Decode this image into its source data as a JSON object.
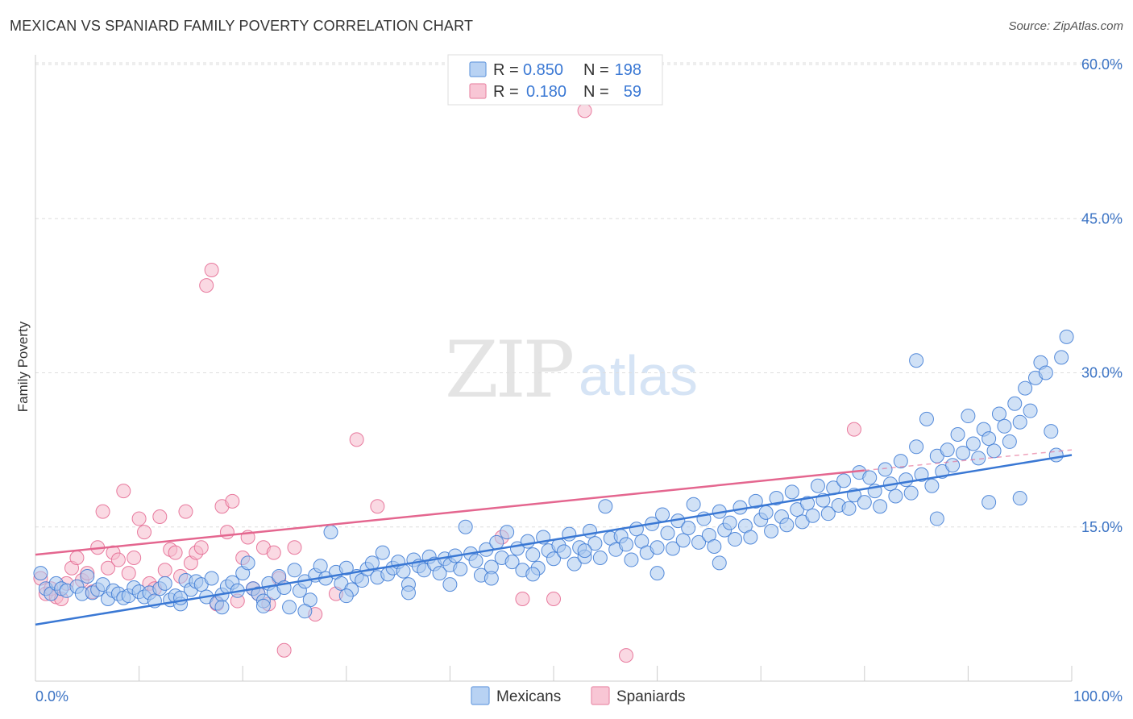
{
  "title": "MEXICAN VS SPANIARD FAMILY POVERTY CORRELATION CHART",
  "source": "Source: ZipAtlas.com",
  "colors": {
    "blue": "#3a78d4",
    "blue_fill": "#a9c8ef",
    "pink": "#e4668f",
    "pink_fill": "#f6b9cc",
    "tick": "#3b73c4"
  },
  "legend": {
    "rows": [
      {
        "r_label": "R =",
        "r_value": "0.850",
        "n_label": "N =",
        "n_value": "198"
      },
      {
        "r_label": "R =",
        "r_value": "0.180",
        "n_label": "N =",
        "n_value": "59"
      }
    ]
  },
  "bottom_legend": {
    "series1": "Mexicans",
    "series2": "Spaniards"
  },
  "watermark": {
    "zip": "ZIP",
    "atlas": "atlas"
  },
  "chart_data": {
    "type": "scatter",
    "title": "MEXICAN VS SPANIARD FAMILY POVERTY CORRELATION CHART",
    "xlabel": "",
    "ylabel": "Family Poverty",
    "xlim": [
      0,
      100
    ],
    "ylim": [
      0,
      60
    ],
    "x_tick_labels": [
      "0.0%",
      "100.0%"
    ],
    "y_ticks": [
      15,
      30,
      45,
      60
    ],
    "y_tick_labels": [
      "15.0%",
      "30.0%",
      "45.0%",
      "60.0%"
    ],
    "series": [
      {
        "name": "Mexicans",
        "R": 0.85,
        "N": 198,
        "trend": {
          "x0": 0,
          "y0": 5.5,
          "x1": 100,
          "y1": 22.0
        },
        "points": [
          [
            0.5,
            10.5
          ],
          [
            1.0,
            9.0
          ],
          [
            1.5,
            8.5
          ],
          [
            2.0,
            9.5
          ],
          [
            2.5,
            9.0
          ],
          [
            3.0,
            8.8
          ],
          [
            4.0,
            9.2
          ],
          [
            4.5,
            8.5
          ],
          [
            5.0,
            10.2
          ],
          [
            5.5,
            8.6
          ],
          [
            6.0,
            8.9
          ],
          [
            6.5,
            9.4
          ],
          [
            7.0,
            8.0
          ],
          [
            7.5,
            8.8
          ],
          [
            8.0,
            8.5
          ],
          [
            8.5,
            8.1
          ],
          [
            9.0,
            8.3
          ],
          [
            9.5,
            9.1
          ],
          [
            10.0,
            8.7
          ],
          [
            10.5,
            8.2
          ],
          [
            11.0,
            8.6
          ],
          [
            11.5,
            7.8
          ],
          [
            12.0,
            9.0
          ],
          [
            12.5,
            9.5
          ],
          [
            13.0,
            7.9
          ],
          [
            13.5,
            8.3
          ],
          [
            14.0,
            7.5
          ],
          [
            14.5,
            9.8
          ],
          [
            15.0,
            8.9
          ],
          [
            15.5,
            9.7
          ],
          [
            16.0,
            9.4
          ],
          [
            16.5,
            8.2
          ],
          [
            17.0,
            10.0
          ],
          [
            17.5,
            7.6
          ],
          [
            18.0,
            8.4
          ],
          [
            18.5,
            9.2
          ],
          [
            19.0,
            9.6
          ],
          [
            19.5,
            8.8
          ],
          [
            20.0,
            10.5
          ],
          [
            20.5,
            11.5
          ],
          [
            21.0,
            9.0
          ],
          [
            21.5,
            8.5
          ],
          [
            22.0,
            7.8
          ],
          [
            22.5,
            9.5
          ],
          [
            23.0,
            8.6
          ],
          [
            23.5,
            10.2
          ],
          [
            24.0,
            9.1
          ],
          [
            24.5,
            7.2
          ],
          [
            25.0,
            10.8
          ],
          [
            25.5,
            8.8
          ],
          [
            26.0,
            9.7
          ],
          [
            26.5,
            7.9
          ],
          [
            27.0,
            10.3
          ],
          [
            27.5,
            11.2
          ],
          [
            28.0,
            10.0
          ],
          [
            28.5,
            14.5
          ],
          [
            29.0,
            10.6
          ],
          [
            29.5,
            9.5
          ],
          [
            30.0,
            11.0
          ],
          [
            30.5,
            8.9
          ],
          [
            31.0,
            10.2
          ],
          [
            31.5,
            9.8
          ],
          [
            32.0,
            10.9
          ],
          [
            32.5,
            11.5
          ],
          [
            33.0,
            10.1
          ],
          [
            33.5,
            12.5
          ],
          [
            34.0,
            10.4
          ],
          [
            34.5,
            11.0
          ],
          [
            35.0,
            11.6
          ],
          [
            35.5,
            10.7
          ],
          [
            36.0,
            9.4
          ],
          [
            36.5,
            11.8
          ],
          [
            37.0,
            11.2
          ],
          [
            37.5,
            10.8
          ],
          [
            38.0,
            12.1
          ],
          [
            38.5,
            11.4
          ],
          [
            39.0,
            10.5
          ],
          [
            39.5,
            11.9
          ],
          [
            40.0,
            11.3
          ],
          [
            40.5,
            12.2
          ],
          [
            41.0,
            10.9
          ],
          [
            41.5,
            15.0
          ],
          [
            42.0,
            12.4
          ],
          [
            42.5,
            11.7
          ],
          [
            43.0,
            10.3
          ],
          [
            43.5,
            12.8
          ],
          [
            44.0,
            11.1
          ],
          [
            44.5,
            13.5
          ],
          [
            45.0,
            12.0
          ],
          [
            45.5,
            14.5
          ],
          [
            46.0,
            11.6
          ],
          [
            46.5,
            12.9
          ],
          [
            47.0,
            10.8
          ],
          [
            47.5,
            13.6
          ],
          [
            48.0,
            12.3
          ],
          [
            48.5,
            11.0
          ],
          [
            49.0,
            14.0
          ],
          [
            49.5,
            12.7
          ],
          [
            50.0,
            11.9
          ],
          [
            50.5,
            13.2
          ],
          [
            51.0,
            12.6
          ],
          [
            51.5,
            14.3
          ],
          [
            52.0,
            11.4
          ],
          [
            52.5,
            13.0
          ],
          [
            53.0,
            12.1
          ],
          [
            53.5,
            14.6
          ],
          [
            54.0,
            13.4
          ],
          [
            54.5,
            12.0
          ],
          [
            55.0,
            17.0
          ],
          [
            55.5,
            13.9
          ],
          [
            56.0,
            12.8
          ],
          [
            56.5,
            14.1
          ],
          [
            57.0,
            13.3
          ],
          [
            57.5,
            11.8
          ],
          [
            58.0,
            14.8
          ],
          [
            58.5,
            13.6
          ],
          [
            59.0,
            12.5
          ],
          [
            59.5,
            15.3
          ],
          [
            60.0,
            13.0
          ],
          [
            60.5,
            16.2
          ],
          [
            61.0,
            14.4
          ],
          [
            61.5,
            12.9
          ],
          [
            62.0,
            15.6
          ],
          [
            62.5,
            13.7
          ],
          [
            63.0,
            14.9
          ],
          [
            63.5,
            17.2
          ],
          [
            64.0,
            13.5
          ],
          [
            64.5,
            15.8
          ],
          [
            65.0,
            14.2
          ],
          [
            65.5,
            13.1
          ],
          [
            66.0,
            16.5
          ],
          [
            66.5,
            14.7
          ],
          [
            67.0,
            15.4
          ],
          [
            67.5,
            13.8
          ],
          [
            68.0,
            16.9
          ],
          [
            68.5,
            15.1
          ],
          [
            69.0,
            14.0
          ],
          [
            69.5,
            17.5
          ],
          [
            70.0,
            15.7
          ],
          [
            70.5,
            16.4
          ],
          [
            71.0,
            14.6
          ],
          [
            71.5,
            17.8
          ],
          [
            72.0,
            16.0
          ],
          [
            72.5,
            15.2
          ],
          [
            73.0,
            18.4
          ],
          [
            73.5,
            16.7
          ],
          [
            74.0,
            15.5
          ],
          [
            74.5,
            17.3
          ],
          [
            75.0,
            16.1
          ],
          [
            75.5,
            19.0
          ],
          [
            76.0,
            17.6
          ],
          [
            76.5,
            16.3
          ],
          [
            77.0,
            18.8
          ],
          [
            77.5,
            17.1
          ],
          [
            78.0,
            19.5
          ],
          [
            78.5,
            16.8
          ],
          [
            79.0,
            18.1
          ],
          [
            79.5,
            20.3
          ],
          [
            80.0,
            17.4
          ],
          [
            80.5,
            19.8
          ],
          [
            81.0,
            18.5
          ],
          [
            81.5,
            17.0
          ],
          [
            82.0,
            20.6
          ],
          [
            82.5,
            19.2
          ],
          [
            83.0,
            18.0
          ],
          [
            83.5,
            21.4
          ],
          [
            84.0,
            19.6
          ],
          [
            84.5,
            18.3
          ],
          [
            85.0,
            22.8
          ],
          [
            85.5,
            20.1
          ],
          [
            86.0,
            25.5
          ],
          [
            86.5,
            19.0
          ],
          [
            87.0,
            21.9
          ],
          [
            87.5,
            20.4
          ],
          [
            88.0,
            22.5
          ],
          [
            88.5,
            21.0
          ],
          [
            89.0,
            24.0
          ],
          [
            89.5,
            22.2
          ],
          [
            90.0,
            25.8
          ],
          [
            90.5,
            23.1
          ],
          [
            91.0,
            21.7
          ],
          [
            91.5,
            24.5
          ],
          [
            92.0,
            23.6
          ],
          [
            92.5,
            22.4
          ],
          [
            93.0,
            26.0
          ],
          [
            93.5,
            24.8
          ],
          [
            94.0,
            23.3
          ],
          [
            94.5,
            27.0
          ],
          [
            95.0,
            25.2
          ],
          [
            95.5,
            28.5
          ],
          [
            96.0,
            26.3
          ],
          [
            96.5,
            29.5
          ],
          [
            97.0,
            31.0
          ],
          [
            97.5,
            30.0
          ],
          [
            98.0,
            24.3
          ],
          [
            98.5,
            22.0
          ],
          [
            99.0,
            31.5
          ],
          [
            99.5,
            33.5
          ],
          [
            85.0,
            31.2
          ],
          [
            87.0,
            15.8
          ],
          [
            92.0,
            17.4
          ],
          [
            95.0,
            17.8
          ],
          [
            66.0,
            11.5
          ],
          [
            60.0,
            10.5
          ],
          [
            53.0,
            12.7
          ],
          [
            48.0,
            10.4
          ],
          [
            44.0,
            10.0
          ],
          [
            40.0,
            9.4
          ],
          [
            36.0,
            8.6
          ],
          [
            30.0,
            8.3
          ],
          [
            26.0,
            6.8
          ],
          [
            22.0,
            7.3
          ],
          [
            18.0,
            7.2
          ],
          [
            14.0,
            8.1
          ]
        ]
      },
      {
        "name": "Spaniards",
        "R": 0.18,
        "N": 59,
        "trend": {
          "x0": 0,
          "y0": 12.3,
          "x1": 80,
          "y1": 20.5
        },
        "trend_ext": {
          "x0": 80,
          "y0": 20.5,
          "x1": 100,
          "y1": 22.5
        },
        "points": [
          [
            0.5,
            10.0
          ],
          [
            1.0,
            8.5
          ],
          [
            1.5,
            9.0
          ],
          [
            2.0,
            8.2
          ],
          [
            2.5,
            8.0
          ],
          [
            3.0,
            9.5
          ],
          [
            3.5,
            11.0
          ],
          [
            4.0,
            12.0
          ],
          [
            4.5,
            9.8
          ],
          [
            5.0,
            10.5
          ],
          [
            5.5,
            8.7
          ],
          [
            6.0,
            13.0
          ],
          [
            6.5,
            16.5
          ],
          [
            7.0,
            11.0
          ],
          [
            7.5,
            12.5
          ],
          [
            8.0,
            11.8
          ],
          [
            8.5,
            18.5
          ],
          [
            9.0,
            10.5
          ],
          [
            9.5,
            12.0
          ],
          [
            10.0,
            15.8
          ],
          [
            10.5,
            14.5
          ],
          [
            11.0,
            9.5
          ],
          [
            11.5,
            9.0
          ],
          [
            12.0,
            16.0
          ],
          [
            12.5,
            10.8
          ],
          [
            13.0,
            12.8
          ],
          [
            13.5,
            12.5
          ],
          [
            14.0,
            10.2
          ],
          [
            14.5,
            16.5
          ],
          [
            15.0,
            11.5
          ],
          [
            15.5,
            12.5
          ],
          [
            16.0,
            13.0
          ],
          [
            16.5,
            38.5
          ],
          [
            17.0,
            40.0
          ],
          [
            17.5,
            7.5
          ],
          [
            18.0,
            17.0
          ],
          [
            18.5,
            14.5
          ],
          [
            19.0,
            17.5
          ],
          [
            19.5,
            7.8
          ],
          [
            20.0,
            12.0
          ],
          [
            20.5,
            14.0
          ],
          [
            21.0,
            9.0
          ],
          [
            21.5,
            8.5
          ],
          [
            22.0,
            13.0
          ],
          [
            22.5,
            7.5
          ],
          [
            23.0,
            12.5
          ],
          [
            23.5,
            10.0
          ],
          [
            24.0,
            3.0
          ],
          [
            25.0,
            13.0
          ],
          [
            27.0,
            6.5
          ],
          [
            29.0,
            8.5
          ],
          [
            31.0,
            23.5
          ],
          [
            33.0,
            17.0
          ],
          [
            45.0,
            14.0
          ],
          [
            47.0,
            8.0
          ],
          [
            50.0,
            8.0
          ],
          [
            53.0,
            55.5
          ],
          [
            57.0,
            2.5
          ],
          [
            79.0,
            24.5
          ]
        ]
      }
    ]
  }
}
